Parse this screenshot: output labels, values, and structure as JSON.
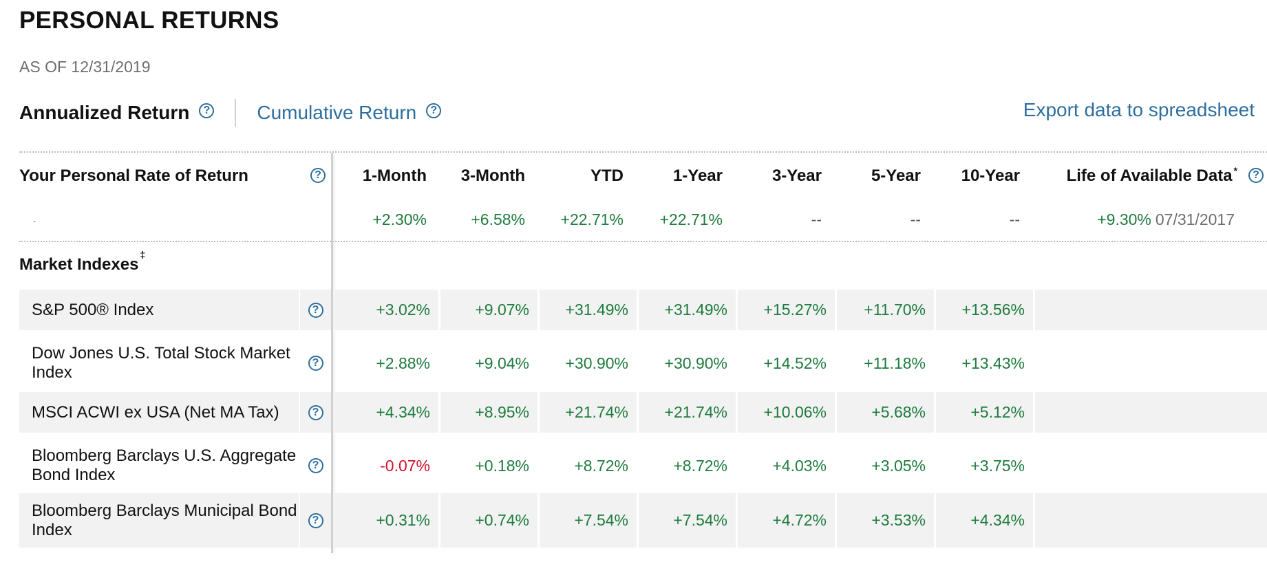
{
  "header": {
    "title": "PERSONAL RETURNS",
    "as_of_label": "AS OF",
    "as_of_date": "12/31/2019"
  },
  "tabs": [
    {
      "label": "Annualized Return",
      "active": true
    },
    {
      "label": "Cumulative Return",
      "active": false
    }
  ],
  "export_label": "Export data to spreadsheet",
  "table": {
    "row_header": "Your Personal Rate of Return",
    "columns": [
      "1-Month",
      "3-Month",
      "YTD",
      "1-Year",
      "3-Year",
      "5-Year",
      "10-Year",
      "Life of Available Data"
    ],
    "life_marker": "*",
    "personal": {
      "tick": "`",
      "values": [
        "+2.30%",
        "+6.58%",
        "+22.71%",
        "+22.71%",
        "--",
        "--",
        "--"
      ],
      "life_value": "+9.30%",
      "life_date": "07/31/2017"
    },
    "market_title": "Market Indexes",
    "market_marker": "‡",
    "indexes": [
      {
        "name": "S&P 500® Index",
        "values": [
          "+3.02%",
          "+9.07%",
          "+31.49%",
          "+31.49%",
          "+15.27%",
          "+11.70%",
          "+13.56%"
        ]
      },
      {
        "name": "Dow Jones U.S. Total Stock Market Index",
        "values": [
          "+2.88%",
          "+9.04%",
          "+30.90%",
          "+30.90%",
          "+14.52%",
          "+11.18%",
          "+13.43%"
        ]
      },
      {
        "name": "MSCI ACWI ex USA (Net MA Tax)",
        "values": [
          "+4.34%",
          "+8.95%",
          "+21.74%",
          "+21.74%",
          "+10.06%",
          "+5.68%",
          "+5.12%"
        ]
      },
      {
        "name": "Bloomberg Barclays U.S. Aggregate Bond Index",
        "values": [
          "-0.07%",
          "+0.18%",
          "+8.72%",
          "+8.72%",
          "+4.03%",
          "+3.05%",
          "+3.75%"
        ]
      },
      {
        "name": "Bloomberg Barclays Municipal Bond Index",
        "values": [
          "+0.31%",
          "+0.74%",
          "+7.54%",
          "+7.54%",
          "+4.72%",
          "+3.53%",
          "+4.34%"
        ]
      }
    ]
  },
  "colors": {
    "positive": "#1e7b3e",
    "negative": "#d0112b",
    "link": "#2d6e9e"
  },
  "icons": {
    "help": "question-circle-icon"
  }
}
